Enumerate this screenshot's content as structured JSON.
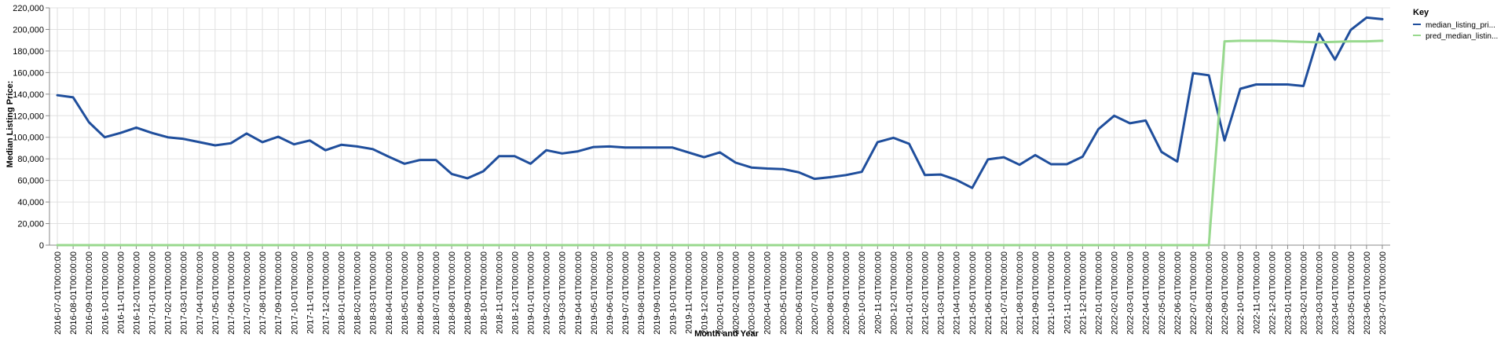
{
  "chart_data": {
    "type": "line",
    "xlabel": "Month and Year",
    "ylabel": "Median Listing Price:",
    "ylim": [
      0,
      220000
    ],
    "yticks": [
      "0",
      "20,000",
      "40,000",
      "60,000",
      "80,000",
      "100,000",
      "120,000",
      "140,000",
      "160,000",
      "180,000",
      "200,000",
      "220,000"
    ],
    "grid": true,
    "legend": {
      "title": "Key",
      "placement": "top-right"
    },
    "categories": [
      "2016-07-01T00:00:00",
      "2016-08-01T00:00:00",
      "2016-09-01T00:00:00",
      "2016-10-01T00:00:00",
      "2016-11-01T00:00:00",
      "2016-12-01T00:00:00",
      "2017-01-01T00:00:00",
      "2017-02-01T00:00:00",
      "2017-03-01T00:00:00",
      "2017-04-01T00:00:00",
      "2017-05-01T00:00:00",
      "2017-06-01T00:00:00",
      "2017-07-01T00:00:00",
      "2017-08-01T00:00:00",
      "2017-09-01T00:00:00",
      "2017-10-01T00:00:00",
      "2017-11-01T00:00:00",
      "2017-12-01T00:00:00",
      "2018-01-01T00:00:00",
      "2018-02-01T00:00:00",
      "2018-03-01T00:00:00",
      "2018-04-01T00:00:00",
      "2018-05-01T00:00:00",
      "2018-06-01T00:00:00",
      "2018-07-01T00:00:00",
      "2018-08-01T00:00:00",
      "2018-09-01T00:00:00",
      "2018-10-01T00:00:00",
      "2018-11-01T00:00:00",
      "2018-12-01T00:00:00",
      "2019-01-01T00:00:00",
      "2019-02-01T00:00:00",
      "2019-03-01T00:00:00",
      "2019-04-01T00:00:00",
      "2019-05-01T00:00:00",
      "2019-06-01T00:00:00",
      "2019-07-01T00:00:00",
      "2019-08-01T00:00:00",
      "2019-09-01T00:00:00",
      "2019-10-01T00:00:00",
      "2019-11-01T00:00:00",
      "2019-12-01T00:00:00",
      "2020-01-01T00:00:00",
      "2020-02-01T00:00:00",
      "2020-03-01T00:00:00",
      "2020-04-01T00:00:00",
      "2020-05-01T00:00:00",
      "2020-06-01T00:00:00",
      "2020-07-01T00:00:00",
      "2020-08-01T00:00:00",
      "2020-09-01T00:00:00",
      "2020-10-01T00:00:00",
      "2020-11-01T00:00:00",
      "2020-12-01T00:00:00",
      "2021-01-01T00:00:00",
      "2021-02-01T00:00:00",
      "2021-03-01T00:00:00",
      "2021-04-01T00:00:00",
      "2021-05-01T00:00:00",
      "2021-06-01T00:00:00",
      "2021-07-01T00:00:00",
      "2021-08-01T00:00:00",
      "2021-09-01T00:00:00",
      "2021-10-01T00:00:00",
      "2021-11-01T00:00:00",
      "2021-12-01T00:00:00",
      "2022-01-01T00:00:00",
      "2022-02-01T00:00:00",
      "2022-03-01T00:00:00",
      "2022-04-01T00:00:00",
      "2022-05-01T00:00:00",
      "2022-06-01T00:00:00",
      "2022-07-01T00:00:00",
      "2022-08-01T00:00:00",
      "2022-09-01T00:00:00",
      "2022-10-01T00:00:00",
      "2022-11-01T00:00:00",
      "2022-12-01T00:00:00",
      "2023-01-01T00:00:00",
      "2023-02-01T00:00:00",
      "2023-03-01T00:00:00",
      "2023-04-01T00:00:00",
      "2023-05-01T00:00:00",
      "2023-06-01T00:00:00",
      "2023-07-01T00:00:00"
    ],
    "series": [
      {
        "name": "median_listing_pri...",
        "color": "#1f4e9c",
        "values": [
          139000,
          137000,
          114000,
          100000,
          104000,
          109000,
          104000,
          100000,
          98500,
          95500,
          92500,
          94500,
          103500,
          95500,
          100500,
          93500,
          97000,
          88000,
          93000,
          91500,
          89000,
          82000,
          75500,
          79000,
          79000,
          66000,
          62000,
          68500,
          82500,
          82500,
          75500,
          88000,
          85000,
          87000,
          91000,
          91500,
          90500,
          90500,
          90500,
          90500,
          86000,
          81500,
          86000,
          76500,
          72000,
          71000,
          70500,
          67500,
          61500,
          63000,
          65000,
          68000,
          95500,
          99500,
          94000,
          65000,
          65500,
          60500,
          53000,
          79500,
          81500,
          74500,
          83500,
          75000,
          75000,
          82000,
          107500,
          120000,
          113000,
          115500,
          86500,
          77500,
          159500,
          157500,
          97000,
          145000,
          149000,
          149000,
          149000,
          147500,
          196000,
          172000,
          199500,
          211000,
          209500
        ]
      },
      {
        "name": "pred_median_listin...",
        "color": "#98d98e",
        "values": [
          0,
          0,
          0,
          0,
          0,
          0,
          0,
          0,
          0,
          0,
          0,
          0,
          0,
          0,
          0,
          0,
          0,
          0,
          0,
          0,
          0,
          0,
          0,
          0,
          0,
          0,
          0,
          0,
          0,
          0,
          0,
          0,
          0,
          0,
          0,
          0,
          0,
          0,
          0,
          0,
          0,
          0,
          0,
          0,
          0,
          0,
          0,
          0,
          0,
          0,
          0,
          0,
          0,
          0,
          0,
          0,
          0,
          0,
          0,
          0,
          0,
          0,
          0,
          0,
          0,
          0,
          0,
          0,
          0,
          0,
          0,
          0,
          0,
          0,
          189000,
          189500,
          189500,
          189500,
          189000,
          188500,
          188000,
          188500,
          189000,
          189000,
          189500
        ]
      }
    ]
  }
}
